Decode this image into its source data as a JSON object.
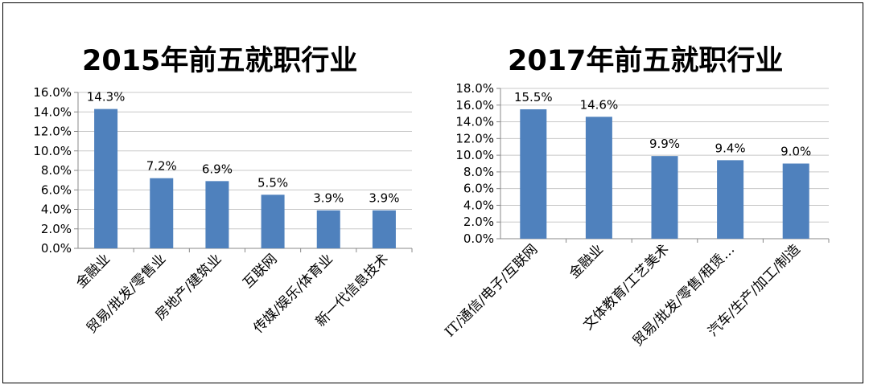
{
  "chart_data": [
    {
      "type": "bar",
      "title": "2015年前五就职行业",
      "categories": [
        "金融业",
        "贸易/批发/零售业",
        "房地产/建筑业",
        "互联网",
        "传媒/娱乐/体育业",
        "新一代信息技术"
      ],
      "values": [
        14.3,
        7.2,
        6.9,
        5.5,
        3.9,
        3.9
      ],
      "data_labels": [
        "14.3%",
        "7.2%",
        "6.9%",
        "5.5%",
        "3.9%",
        "3.9%"
      ],
      "ylim": [
        0,
        16
      ],
      "y_ticks": [
        "0.0%",
        "2.0%",
        "4.0%",
        "6.0%",
        "8.0%",
        "10.0%",
        "12.0%",
        "14.0%",
        "16.0%"
      ],
      "grid": true,
      "legend": "none",
      "bar_color": "#4F81BD"
    },
    {
      "type": "bar",
      "title": "2017年前五就职行业",
      "categories": [
        "IT/通信/电子/互联网",
        "金融业",
        "文体教育/工艺美术",
        "贸易/批发/零售/租赁…",
        "汽车/生产/加工/制造"
      ],
      "values": [
        15.5,
        14.6,
        9.9,
        9.4,
        9.0
      ],
      "data_labels": [
        "15.5%",
        "14.6%",
        "9.9%",
        "9.4%",
        "9.0%"
      ],
      "ylim": [
        0,
        18
      ],
      "y_ticks": [
        "0.0%",
        "2.0%",
        "4.0%",
        "6.0%",
        "8.0%",
        "10.0%",
        "12.0%",
        "14.0%",
        "16.0%",
        "18.0%"
      ],
      "grid": true,
      "legend": "none",
      "bar_color": "#4F81BD"
    }
  ]
}
